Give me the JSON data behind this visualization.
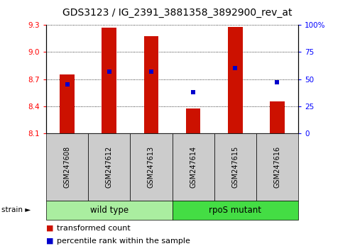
{
  "title": "GDS3123 / IG_2391_3881358_3892900_rev_at",
  "samples": [
    "GSM247608",
    "GSM247612",
    "GSM247613",
    "GSM247614",
    "GSM247615",
    "GSM247616"
  ],
  "transformed_counts": [
    8.75,
    9.27,
    9.18,
    8.37,
    9.28,
    8.45
  ],
  "percentile_ranks": [
    45,
    57,
    57,
    38,
    60,
    47
  ],
  "bar_color": "#cc1100",
  "dot_color": "#0000cc",
  "ylim_left": [
    8.1,
    9.3
  ],
  "ylim_right": [
    0,
    100
  ],
  "yticks_left": [
    8.1,
    8.4,
    8.7,
    9.0,
    9.3
  ],
  "yticks_right": [
    0,
    25,
    50,
    75,
    100
  ],
  "ytick_labels_right": [
    "0",
    "25",
    "50",
    "75",
    "100%"
  ],
  "bar_width": 0.35,
  "baseline": 8.1,
  "group_label": "strain",
  "legend_bar_label": "transformed count",
  "legend_dot_label": "percentile rank within the sample",
  "title_fontsize": 10,
  "tick_fontsize": 7.5,
  "sample_label_fontsize": 7,
  "group_label_fontsize": 8.5,
  "legend_fontsize": 8,
  "wild_type_color": "#aaeea0",
  "rpos_mutant_color": "#44dd44",
  "sample_box_color": "#cccccc"
}
